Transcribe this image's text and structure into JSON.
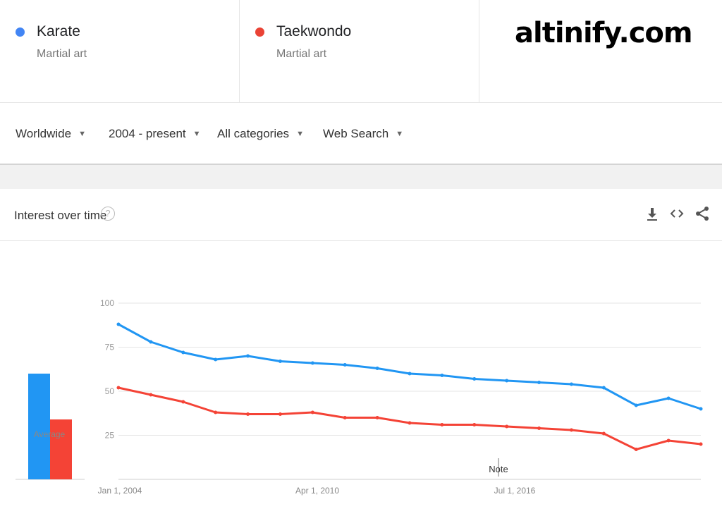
{
  "terms": [
    {
      "name": "Karate",
      "type": "Martial art",
      "color": "#4285f4"
    },
    {
      "name": "Taekwondo",
      "type": "Martial art",
      "color": "#ea4335"
    }
  ],
  "watermark": "altinify.com",
  "filters": {
    "region": "Worldwide",
    "time": "2004 - present",
    "category": "All categories",
    "search_type": "Web Search"
  },
  "panel": {
    "title": "Interest over time",
    "help_symbol": "?",
    "icons": [
      "download-icon",
      "embed-icon",
      "share-icon"
    ],
    "average_label": "Average",
    "note_label": "Note"
  },
  "chart_data": {
    "type": "line",
    "title": "Interest over time",
    "x_tick_labels": [
      "Jan 1, 2004",
      "Apr 1, 2010",
      "Jul 1, 2016"
    ],
    "y_ticks": [
      25,
      50,
      75,
      100
    ],
    "ylim": [
      0,
      100
    ],
    "grid": true,
    "x": [
      "2004",
      "2005",
      "2006",
      "2007",
      "2008",
      "2009",
      "2010",
      "2011",
      "2012",
      "2013",
      "2014",
      "2015",
      "2016",
      "2017",
      "2018",
      "2019",
      "2020",
      "2021",
      "2022"
    ],
    "series": [
      {
        "name": "Karate",
        "color": "#2196f3",
        "values": [
          88,
          78,
          72,
          68,
          70,
          67,
          66,
          65,
          63,
          60,
          59,
          57,
          56,
          55,
          54,
          52,
          42,
          46,
          40
        ]
      },
      {
        "name": "Taekwondo",
        "color": "#f44336",
        "values": [
          52,
          48,
          44,
          38,
          37,
          37,
          38,
          35,
          35,
          32,
          31,
          31,
          30,
          29,
          28,
          26,
          17,
          22,
          20
        ]
      }
    ],
    "averages": [
      {
        "name": "Karate",
        "value": 60
      },
      {
        "name": "Taekwondo",
        "value": 34
      }
    ]
  }
}
